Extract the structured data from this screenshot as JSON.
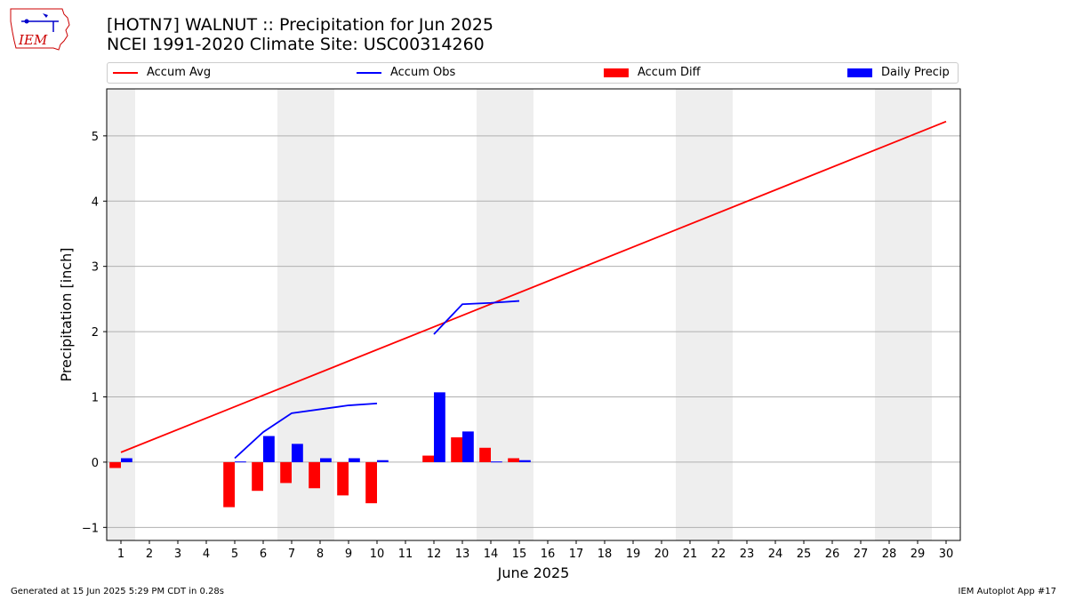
{
  "header": {
    "logo_text": "IEM",
    "title_line1": "[HOTN7] WALNUT :: Precipitation for Jun 2025",
    "title_line2": "NCEI 1991-2020 Climate Site: USC00314260"
  },
  "legend": {
    "accum_avg": "Accum Avg",
    "accum_obs": "Accum Obs",
    "accum_diff": "Accum Diff",
    "daily_precip": "Daily Precip"
  },
  "colors": {
    "avg": "#ff0000",
    "obs": "#0000ff",
    "diff": "#ff0000",
    "daily": "#0000ff",
    "weekend_shade": "#eeeeee",
    "grid": "#b0b0b0"
  },
  "footer": {
    "generated": "Generated at 15 Jun 2025 5:29 PM CDT in 0.28s",
    "app": "IEM Autoplot App #17"
  },
  "chart_data": {
    "type": "bar",
    "title": "[HOTN7] WALNUT :: Precipitation for Jun 2025",
    "subtitle": "NCEI 1991-2020 Climate Site: USC00314260",
    "xlabel": "June 2025",
    "ylabel": "Precipitation [inch]",
    "xlim": [
      0.5,
      30.5
    ],
    "ylim": [
      -1.2,
      5.72
    ],
    "yticks": [
      -1,
      0,
      1,
      2,
      3,
      4,
      5
    ],
    "grid": "horizontal",
    "legend_position": "top",
    "days": [
      1,
      2,
      3,
      4,
      5,
      6,
      7,
      8,
      9,
      10,
      11,
      12,
      13,
      14,
      15,
      16,
      17,
      18,
      19,
      20,
      21,
      22,
      23,
      24,
      25,
      26,
      27,
      28,
      29,
      30
    ],
    "shaded_days": [
      [
        1,
        1
      ],
      [
        7,
        8
      ],
      [
        14,
        15
      ],
      [
        21,
        22
      ],
      [
        28,
        29
      ]
    ],
    "series": [
      {
        "name": "Accum Avg",
        "type": "line",
        "x": [
          1,
          30
        ],
        "y": [
          0.15,
          5.22
        ]
      },
      {
        "name": "Accum Obs",
        "type": "line",
        "segments": [
          {
            "x": [
              5,
              6,
              7,
              8,
              9,
              10
            ],
            "y": [
              0.06,
              0.46,
              0.75,
              0.81,
              0.87,
              0.9
            ]
          },
          {
            "x": [
              12,
              13,
              14,
              15
            ],
            "y": [
              1.96,
              2.42,
              2.44,
              2.47
            ]
          }
        ]
      },
      {
        "name": "Accum Diff",
        "type": "bar",
        "x": [
          1,
          5,
          6,
          7,
          8,
          9,
          10,
          12,
          13,
          14,
          15
        ],
        "y": [
          -0.09,
          -0.69,
          -0.44,
          -0.32,
          -0.4,
          -0.51,
          -0.63,
          0.1,
          0.38,
          0.22,
          0.06
        ]
      },
      {
        "name": "Daily Precip",
        "type": "bar",
        "x": [
          1,
          5,
          6,
          7,
          8,
          9,
          10,
          12,
          13,
          14,
          15
        ],
        "y": [
          0.06,
          0.01,
          0.4,
          0.28,
          0.06,
          0.06,
          0.03,
          1.07,
          0.47,
          0.01,
          0.03
        ]
      }
    ]
  }
}
